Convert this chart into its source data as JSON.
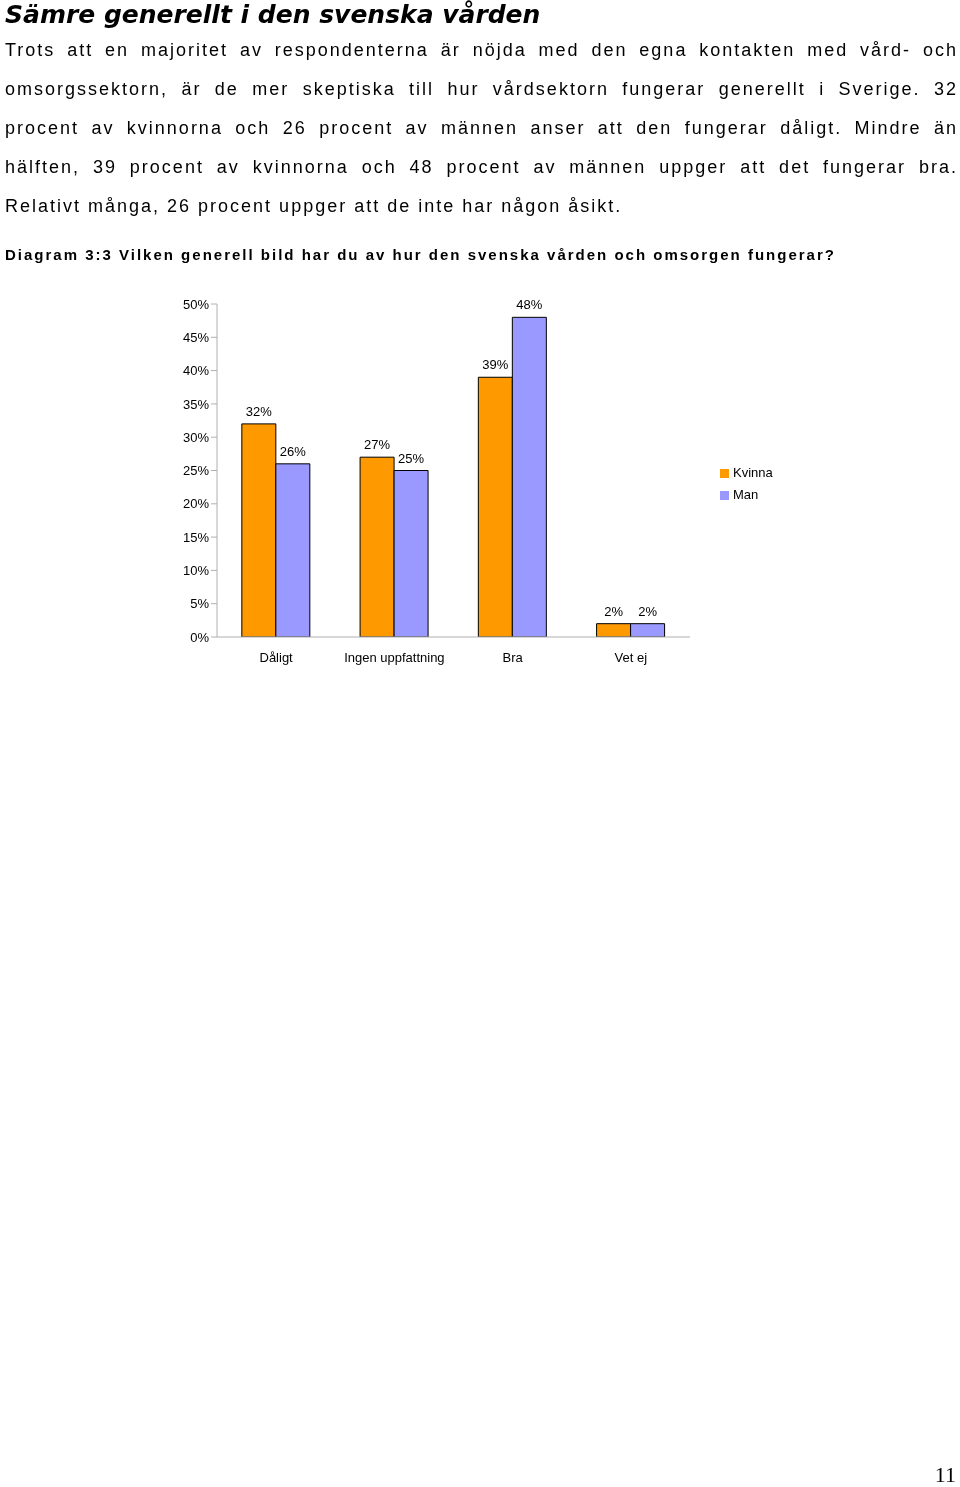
{
  "chart_data": {
    "type": "bar",
    "title": "Sämre generellt i den svenska vården",
    "subtitle": "Trots att en majoritet av respondenterna är nöjda med den egna kontakten med vård- och omsorgssektorn, är de mer skeptiska till hur vårdsektorn fungerar generellt i Sverige. 32 procent av kvinnorna och 26 procent av männen anser att den fungerar dåligt. Mindre än hälften, 39 procent av kvinnorna och 48 procent av männen uppger att det fungerar bra. Relativt många, 26 procent uppger att de inte har någon åsikt.",
    "annotations": [
      "Diagram 3:3 Vilken generell bild har du av hur den svenska vården och omsorgen fungerar?",
      "11"
    ],
    "categories": [
      "Dåligt",
      "Ingen uppfattning",
      "Bra",
      "Vet ej"
    ],
    "series": [
      {
        "name": "Kvinna",
        "color": "#ff9900",
        "values": [
          32,
          27,
          39,
          2
        ],
        "value_labels": [
          "32%",
          "27%",
          "39%",
          "2%"
        ]
      },
      {
        "name": "Man",
        "color": "#9999ff",
        "values": [
          26,
          25,
          48,
          2
        ],
        "value_labels": [
          "26%",
          "25%",
          "48%",
          "2%"
        ]
      }
    ],
    "ylim": [
      0,
      50
    ],
    "yticks": [
      {
        "value": 0,
        "label": "0%"
      },
      {
        "value": 5,
        "label": "5%"
      },
      {
        "value": 10,
        "label": "10%"
      },
      {
        "value": 15,
        "label": "15%"
      },
      {
        "value": 20,
        "label": "20%"
      },
      {
        "value": 25,
        "label": "25%"
      },
      {
        "value": 30,
        "label": "30%"
      },
      {
        "value": 35,
        "label": "35%"
      },
      {
        "value": 40,
        "label": "40%"
      },
      {
        "value": 45,
        "label": "45%"
      },
      {
        "value": 50,
        "label": "50%"
      }
    ],
    "grid": false,
    "legend": "right"
  }
}
